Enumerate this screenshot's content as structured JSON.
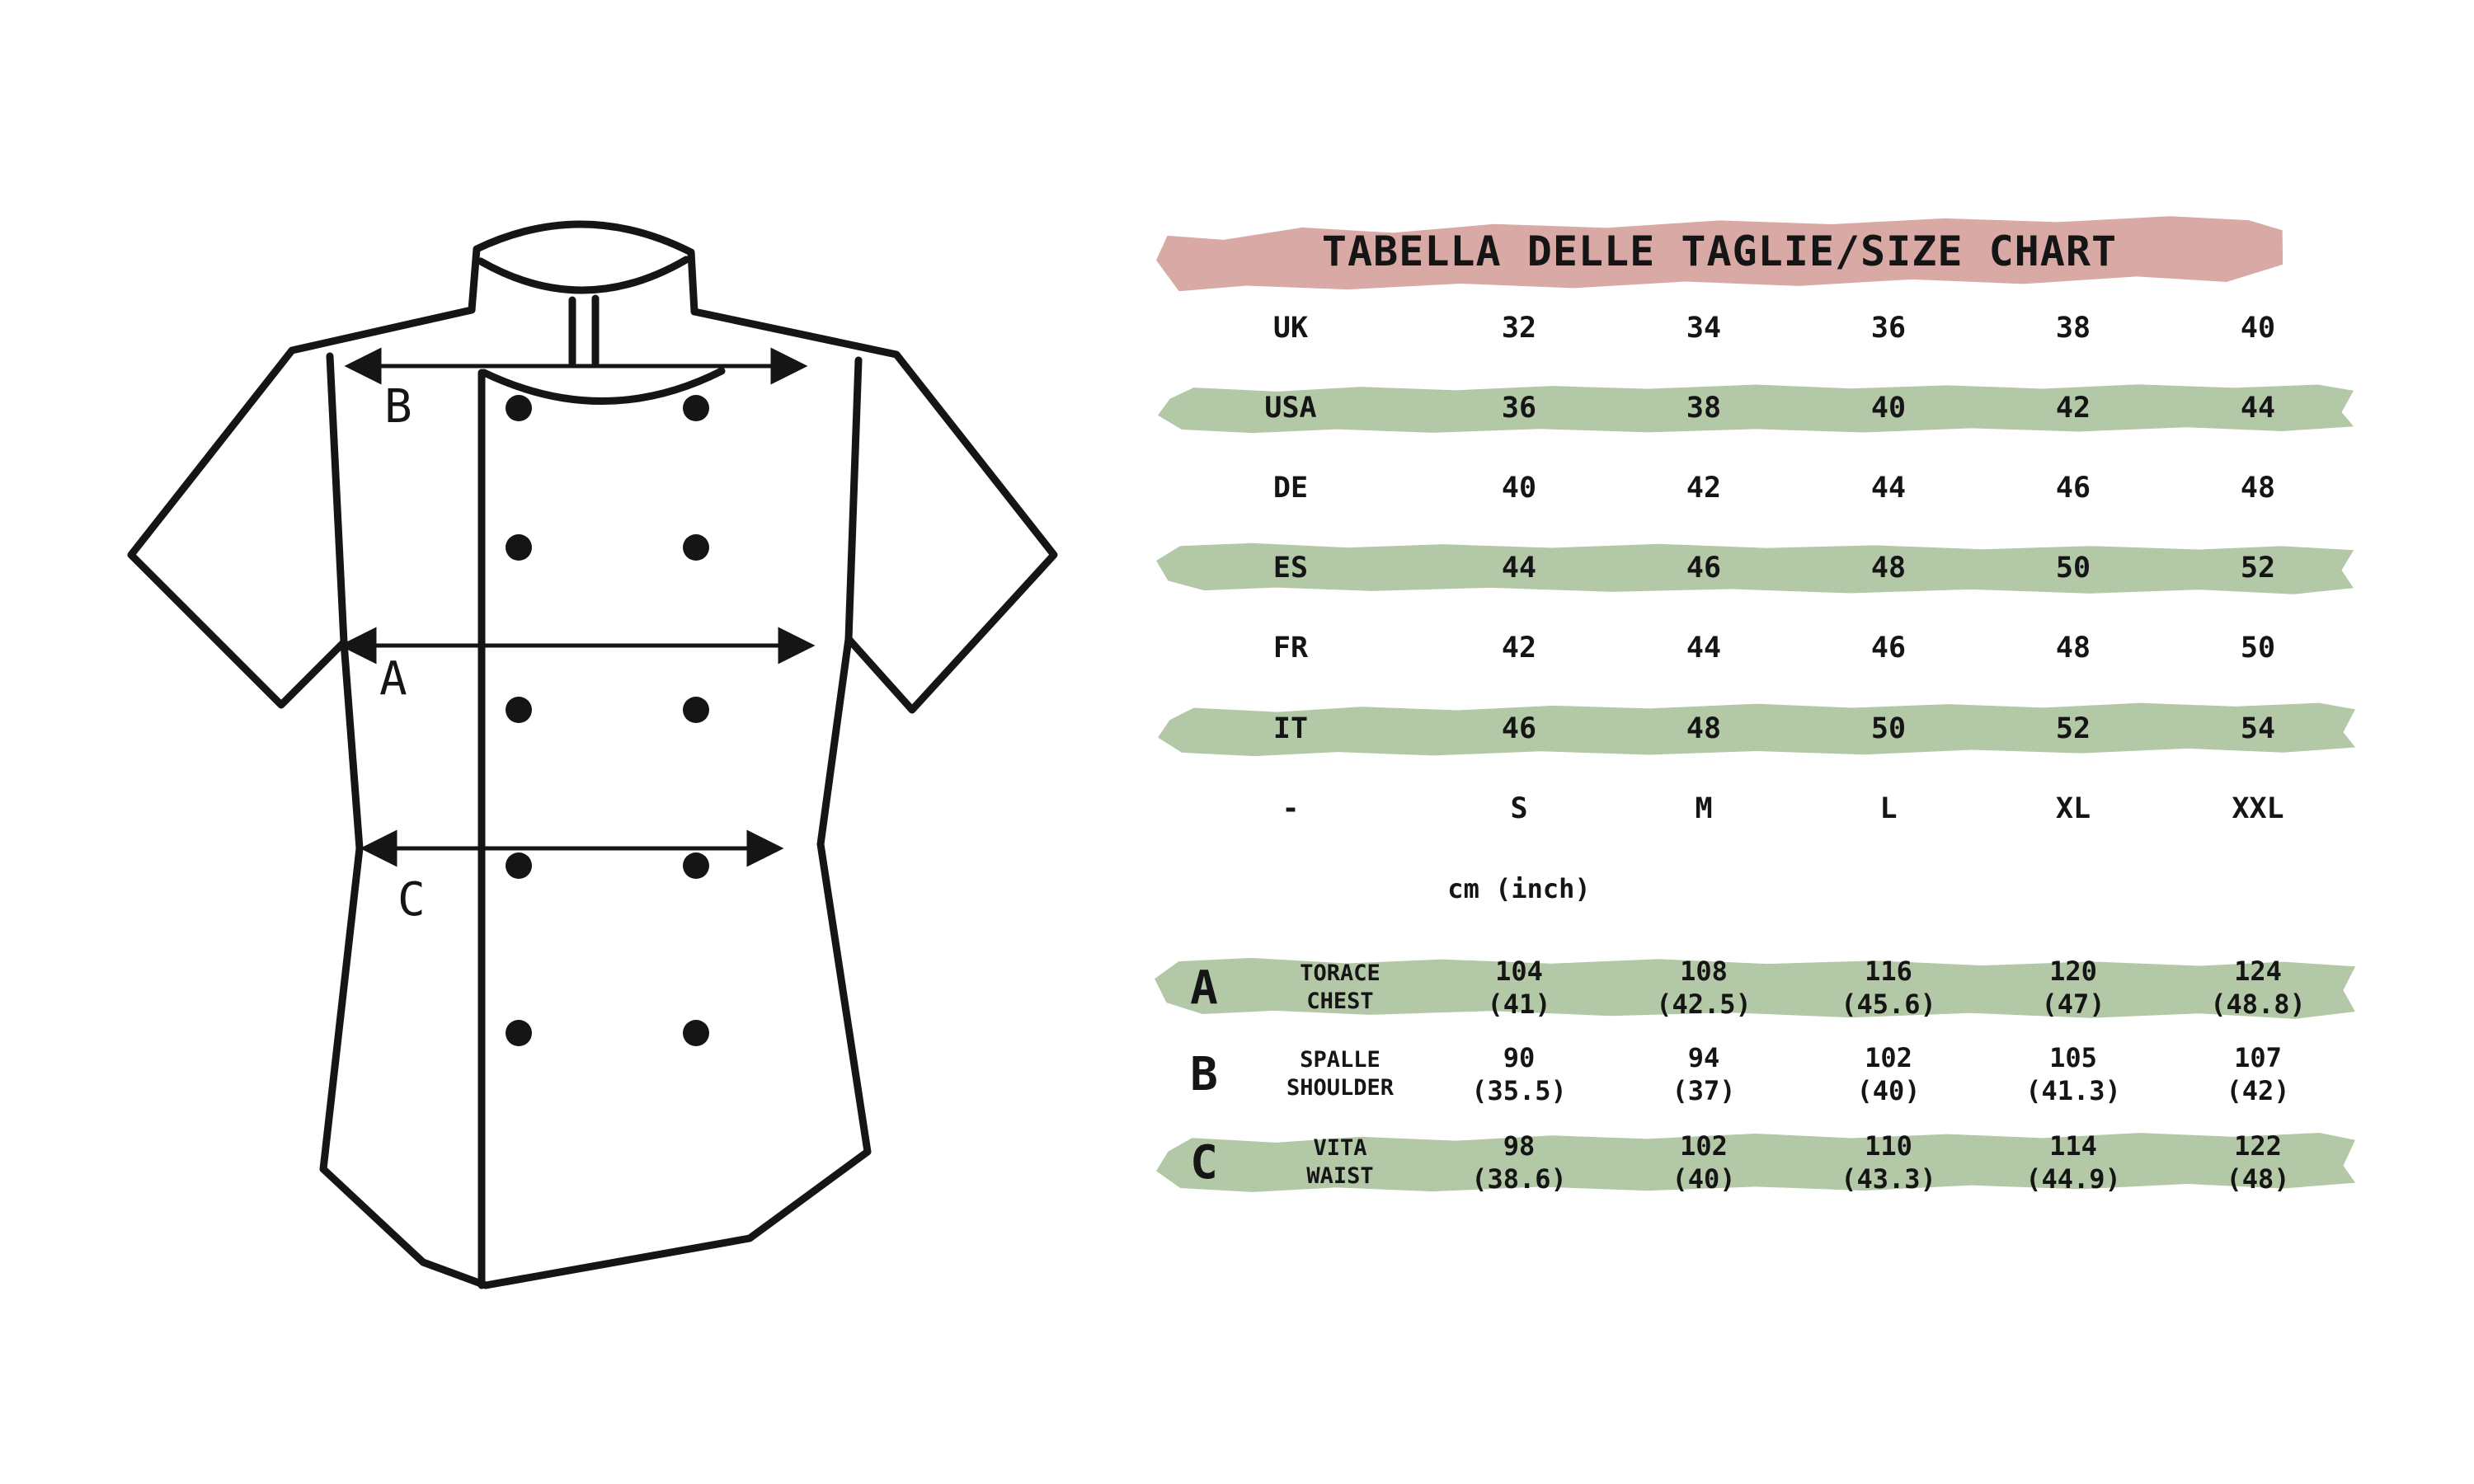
{
  "title": "TABELLA DELLE TAGLIE/SIZE CHART",
  "unit_note": "cm (inch)",
  "colors": {
    "title_band_pink": "#d8a9a5",
    "highlight_band_green": "#b3c8a7",
    "ink": "#151515",
    "background": "#ffffff"
  },
  "diagram": {
    "arrow_a_label": "A",
    "arrow_b_label": "B",
    "arrow_c_label": "C"
  },
  "size_rows": [
    {
      "label": "UK",
      "values": [
        "32",
        "34",
        "36",
        "38",
        "40"
      ]
    },
    {
      "label": "USA",
      "values": [
        "36",
        "38",
        "40",
        "42",
        "44"
      ]
    },
    {
      "label": "DE",
      "values": [
        "40",
        "42",
        "44",
        "46",
        "48"
      ]
    },
    {
      "label": "ES",
      "values": [
        "44",
        "46",
        "48",
        "50",
        "52"
      ]
    },
    {
      "label": "FR",
      "values": [
        "42",
        "44",
        "46",
        "48",
        "50"
      ]
    },
    {
      "label": "IT",
      "values": [
        "46",
        "48",
        "50",
        "52",
        "54"
      ]
    },
    {
      "label": "-",
      "values": [
        "S",
        "M",
        "L",
        "XL",
        "XXL"
      ]
    }
  ],
  "measurement_rows": [
    {
      "key": "A",
      "label_it": "TORACE",
      "label_en": "CHEST",
      "values_cm": [
        "104",
        "108",
        "116",
        "120",
        "124"
      ],
      "values_inch": [
        "(41)",
        "(42.5)",
        "(45.6)",
        "(47)",
        "(48.8)"
      ]
    },
    {
      "key": "B",
      "label_it": "SPALLE",
      "label_en": "SHOULDER",
      "values_cm": [
        "90",
        "94",
        "102",
        "105",
        "107"
      ],
      "values_inch": [
        "(35.5)",
        "(37)",
        "(40)",
        "(41.3)",
        "(42)"
      ]
    },
    {
      "key": "C",
      "label_it": "VITA",
      "label_en": "WAIST",
      "values_cm": [
        "98",
        "102",
        "110",
        "114",
        "122"
      ],
      "values_inch": [
        "(38.6)",
        "(40)",
        "(43.3)",
        "(44.9)",
        "(48)"
      ]
    }
  ]
}
